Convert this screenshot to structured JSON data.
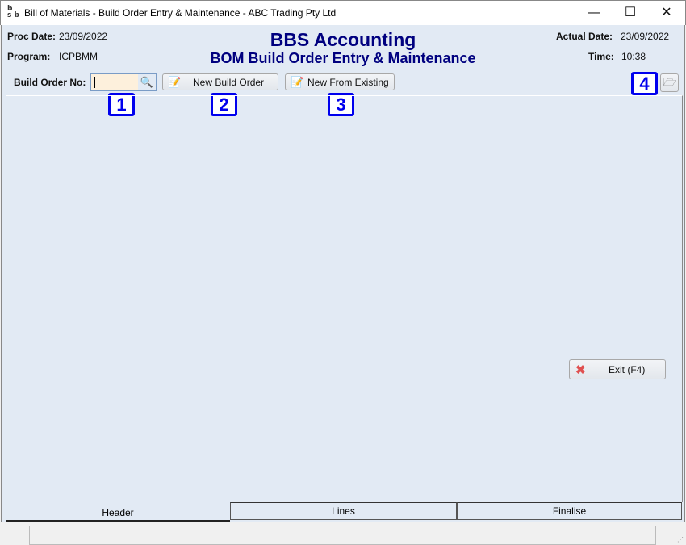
{
  "window": {
    "title": "Bill of Materials - Build Order Entry & Maintenance - ABC Trading Pty Ltd",
    "icon_text": "bsb",
    "minimize": "—",
    "maximize": "☐",
    "close": "✕"
  },
  "header": {
    "proc_date_label": "Proc Date:",
    "proc_date": "23/09/2022",
    "program_label": "Program:",
    "program": "ICPBMM",
    "title": "BBS Accounting",
    "subtitle": "BOM Build Order Entry & Maintenance",
    "actual_date_label": "Actual Date:",
    "actual_date": "23/09/2022",
    "time_label": "Time:",
    "time": "10:38"
  },
  "toolbar": {
    "build_order_label": "Build Order No:",
    "build_order_value": "",
    "new_build_order": "New Build Order",
    "new_from_existing": "New From Existing"
  },
  "callouts": [
    "1",
    "2",
    "3",
    "4"
  ],
  "exit_label": "Exit (F4)",
  "tabs": [
    {
      "label": "Header",
      "active": true
    },
    {
      "label": "Lines"
    },
    {
      "label": "Finalise"
    }
  ],
  "colors": {
    "heading": "#00007f",
    "callout": "#0000ee",
    "background": "#e2eaf4"
  }
}
